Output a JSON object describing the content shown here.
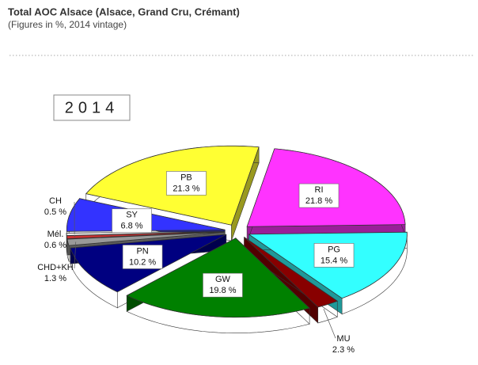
{
  "chart_data": {
    "type": "pie3d",
    "title": "Total AOC Alsace (Alsace, Grand Cru, Crémant)",
    "subtitle": "(Figures in %, 2014 vintage)",
    "year_label": "2014",
    "categories": [
      "RI",
      "PG",
      "MU",
      "GW",
      "PN",
      "CHD+KH",
      "Mél.",
      "CH",
      "SY",
      "PB"
    ],
    "values": [
      21.8,
      15.4,
      2.3,
      19.8,
      10.2,
      1.3,
      0.6,
      0.5,
      6.8,
      21.3
    ],
    "value_labels": [
      "21.8 %",
      "15.4 %",
      "2.3 %",
      "19.8 %",
      "10.2 %",
      "1.3 %",
      "0.6 %",
      "0.5 %",
      "6.8 %",
      "21.3 %"
    ],
    "colors": [
      "#ff33ff",
      "#33ffff",
      "#880000",
      "#008000",
      "#000080",
      "#999999",
      "#cc3333",
      "#eeeeee",
      "#3333ff",
      "#ffff33"
    ]
  }
}
